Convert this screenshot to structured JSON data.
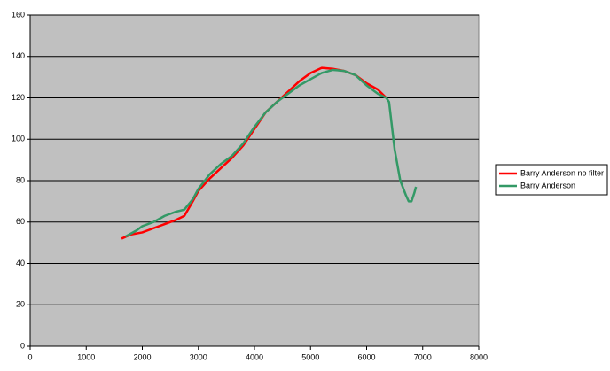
{
  "chart_data": {
    "type": "line",
    "xlim": [
      0,
      8000
    ],
    "xticks": [
      0,
      1000,
      2000,
      3000,
      4000,
      5000,
      6000,
      7000,
      8000
    ],
    "ylim": [
      0,
      160
    ],
    "yticks": [
      0,
      20,
      40,
      60,
      80,
      100,
      120,
      140,
      160
    ],
    "grid": true,
    "legend": "right",
    "series": [
      {
        "name": "Barry Anderson no filter",
        "color": "#ff0000",
        "x": [
          1630,
          1800,
          2000,
          2200,
          2400,
          2600,
          2750,
          2900,
          3000,
          3200,
          3400,
          3600,
          3800,
          4000,
          4200,
          4400,
          4600,
          4800,
          5000,
          5200,
          5400,
          5600,
          5800,
          6000,
          6200,
          6350
        ],
        "values": [
          52,
          54,
          55,
          57,
          59,
          61,
          63,
          70,
          75,
          81,
          86,
          91,
          97,
          105,
          113,
          118,
          123,
          128,
          132,
          134.5,
          134,
          133,
          131,
          127,
          124,
          120
        ]
      },
      {
        "name": "Barry Anderson",
        "color": "#339966",
        "x": [
          1700,
          1900,
          2000,
          2200,
          2400,
          2600,
          2750,
          2900,
          3000,
          3200,
          3400,
          3600,
          3800,
          4000,
          4200,
          4400,
          4600,
          4800,
          5000,
          5200,
          5400,
          5600,
          5800,
          6000,
          6200,
          6350,
          6400,
          6500,
          6600,
          6700,
          6750,
          6800,
          6850,
          6880
        ],
        "values": [
          53,
          56,
          58,
          60,
          63,
          65,
          66,
          71,
          76,
          83,
          88,
          92,
          98,
          106,
          113,
          118,
          122,
          126,
          129,
          132,
          133.5,
          133,
          131,
          126,
          122,
          120,
          118,
          95,
          80,
          73,
          70,
          70,
          74,
          77
        ]
      }
    ]
  }
}
